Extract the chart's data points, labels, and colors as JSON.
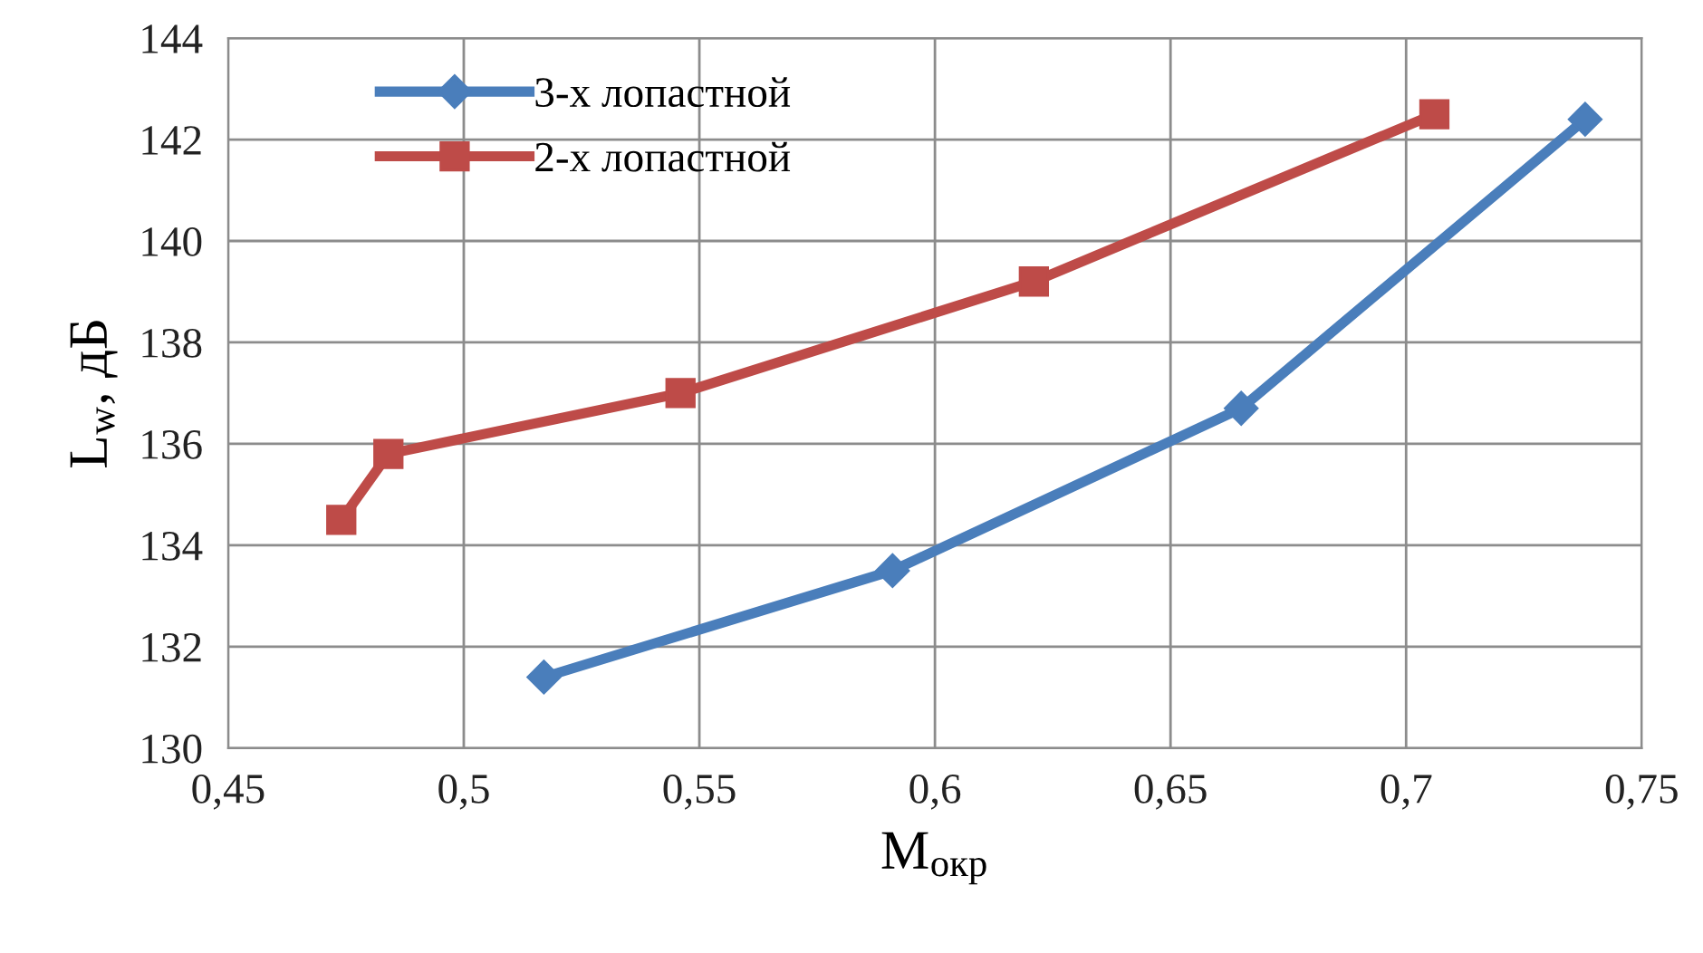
{
  "chart_data": {
    "type": "line",
    "xlabel": "M$_{окр}$",
    "ylabel": "L$_{w}$, дБ",
    "series": [
      {
        "name": "3-х лопастной",
        "color": "#4a7ebb",
        "marker": "diamond",
        "x": [
          0.517,
          0.591,
          0.665,
          0.738
        ],
        "values": [
          131.4,
          133.5,
          136.7,
          142.4
        ]
      },
      {
        "name": "2-х лопастной",
        "color": "#be4b48",
        "marker": "square",
        "x": [
          0.474,
          0.484,
          0.546,
          0.621,
          0.706
        ],
        "values": [
          134.5,
          135.8,
          137.0,
          139.2,
          142.5
        ]
      }
    ],
    "xlim": [
      0.45,
      0.75
    ],
    "xticks": [
      {
        "value": 0.45,
        "label": "0,45"
      },
      {
        "value": 0.5,
        "label": "0,5"
      },
      {
        "value": 0.55,
        "label": "0,55"
      },
      {
        "value": 0.6,
        "label": "0,6"
      },
      {
        "value": 0.65,
        "label": "0,65"
      },
      {
        "value": 0.7,
        "label": "0,7"
      },
      {
        "value": 0.75,
        "label": "0,75"
      }
    ],
    "ylim": [
      130,
      144
    ],
    "yticks": [
      130,
      132,
      134,
      136,
      138,
      140,
      142,
      144
    ],
    "grid": true,
    "legend": "top left",
    "line_style": "solid"
  }
}
